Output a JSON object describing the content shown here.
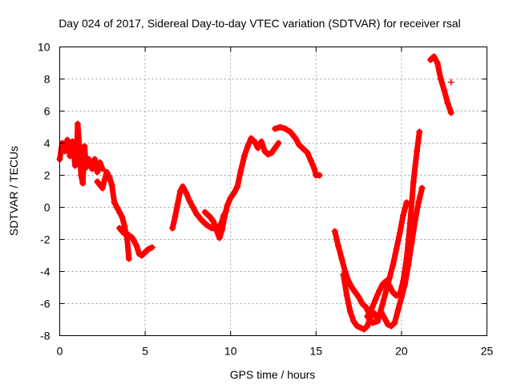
{
  "chart_data": {
    "type": "scatter",
    "title": "Day 024 of 2017, Sidereal Day-to-day VTEC variation (SDTVAR) for receiver rsal",
    "xlabel": "GPS time / hours",
    "ylabel": "SDTVAR / TECUs",
    "xlim": [
      0,
      25
    ],
    "ylim": [
      -8,
      10
    ],
    "xticks": [
      0,
      5,
      10,
      15,
      20,
      25
    ],
    "yticks": [
      -8,
      -6,
      -4,
      -2,
      0,
      2,
      4,
      6,
      8,
      10
    ],
    "grid": true,
    "marker": "plus",
    "color": "#ff0000",
    "series": [
      {
        "values": [
          [
            0.0,
            3.0
          ],
          [
            0.15,
            4.0
          ],
          [
            0.3,
            3.5
          ],
          [
            0.45,
            4.2
          ],
          [
            0.6,
            3.2
          ],
          [
            0.75,
            4.1
          ],
          [
            0.9,
            2.6
          ],
          [
            1.0,
            3.5
          ],
          [
            1.05,
            5.2
          ],
          [
            1.15,
            3.8
          ],
          [
            1.25,
            2.0
          ],
          [
            1.35,
            1.5
          ],
          [
            1.45,
            3.8
          ],
          [
            1.55,
            2.5
          ],
          [
            1.7,
            3.0
          ],
          [
            1.9,
            2.4
          ],
          [
            2.05,
            3.0
          ],
          [
            2.2,
            2.2
          ],
          [
            2.35,
            2.8
          ],
          [
            2.5,
            2.4
          ]
        ]
      },
      {
        "values": [
          [
            2.2,
            1.6
          ],
          [
            2.5,
            1.2
          ],
          [
            2.75,
            2.2
          ],
          [
            2.9,
            1.9
          ],
          [
            3.05,
            1.4
          ],
          [
            3.2,
            0.3
          ],
          [
            3.35,
            0.0
          ],
          [
            3.5,
            -0.3
          ],
          [
            3.65,
            -0.6
          ],
          [
            3.8,
            -1.2
          ],
          [
            3.95,
            -2.0
          ],
          [
            4.05,
            -3.2
          ]
        ]
      },
      {
        "values": [
          [
            3.5,
            -1.3
          ],
          [
            3.75,
            -1.6
          ],
          [
            4.0,
            -1.7
          ],
          [
            4.25,
            -1.9
          ],
          [
            4.5,
            -2.4
          ],
          [
            4.65,
            -2.9
          ],
          [
            4.8,
            -3.0
          ],
          [
            5.0,
            -2.8
          ],
          [
            5.2,
            -2.6
          ],
          [
            5.4,
            -2.5
          ]
        ]
      },
      {
        "values": [
          [
            6.6,
            -1.3
          ],
          [
            6.75,
            -0.6
          ],
          [
            6.9,
            0.2
          ],
          [
            7.05,
            1.0
          ],
          [
            7.2,
            1.3
          ],
          [
            7.4,
            0.9
          ],
          [
            7.6,
            0.4
          ],
          [
            7.8,
            0.0
          ],
          [
            8.0,
            -0.4
          ],
          [
            8.3,
            -0.8
          ],
          [
            8.6,
            -1.1
          ],
          [
            8.9,
            -1.3
          ],
          [
            9.1,
            -1.3
          ],
          [
            9.3,
            -1.2
          ],
          [
            9.45,
            -1.0
          ],
          [
            9.6,
            -0.5
          ],
          [
            9.75,
            -0.2
          ]
        ]
      },
      {
        "values": [
          [
            8.5,
            -0.3
          ],
          [
            8.8,
            -0.6
          ],
          [
            9.0,
            -0.9
          ],
          [
            9.2,
            -1.5
          ],
          [
            9.35,
            -1.9
          ],
          [
            9.5,
            -1.4
          ],
          [
            9.65,
            -0.6
          ],
          [
            9.8,
            0.1
          ],
          [
            10.0,
            0.6
          ],
          [
            10.2,
            0.9
          ],
          [
            10.4,
            1.3
          ],
          [
            10.6,
            2.3
          ],
          [
            10.8,
            3.2
          ],
          [
            11.0,
            3.8
          ],
          [
            11.2,
            4.3
          ],
          [
            11.4,
            4.1
          ],
          [
            11.6,
            3.7
          ],
          [
            11.8,
            4.1
          ],
          [
            12.0,
            3.5
          ],
          [
            12.2,
            3.3
          ],
          [
            12.4,
            3.4
          ],
          [
            12.6,
            3.7
          ],
          [
            12.8,
            4.0
          ]
        ]
      },
      {
        "values": [
          [
            12.6,
            4.9
          ],
          [
            12.9,
            5.0
          ],
          [
            13.2,
            4.9
          ],
          [
            13.5,
            4.7
          ],
          [
            13.8,
            4.3
          ],
          [
            14.0,
            3.9
          ],
          [
            14.3,
            3.6
          ],
          [
            14.5,
            3.4
          ],
          [
            14.7,
            2.9
          ],
          [
            14.9,
            2.4
          ],
          [
            15.0,
            2.0
          ],
          [
            15.2,
            2.0
          ]
        ]
      },
      {
        "values": [
          [
            16.1,
            -1.5
          ],
          [
            16.3,
            -2.4
          ],
          [
            16.5,
            -3.2
          ],
          [
            16.7,
            -4.0
          ],
          [
            16.9,
            -4.6
          ],
          [
            17.1,
            -5.0
          ],
          [
            17.3,
            -5.3
          ],
          [
            17.5,
            -5.6
          ],
          [
            17.7,
            -6.0
          ],
          [
            17.9,
            -6.2
          ],
          [
            18.1,
            -6.6
          ],
          [
            18.3,
            -6.2
          ],
          [
            18.5,
            -5.7
          ],
          [
            18.7,
            -5.2
          ],
          [
            18.9,
            -4.8
          ],
          [
            19.1,
            -4.6
          ],
          [
            19.3,
            -4.9
          ],
          [
            19.5,
            -5.3
          ],
          [
            19.7,
            -5.5
          ],
          [
            19.9,
            -5.4
          ],
          [
            20.1,
            -4.6
          ],
          [
            20.3,
            -3.2
          ],
          [
            20.5,
            -1.0
          ],
          [
            20.7,
            1.6
          ],
          [
            20.9,
            3.5
          ],
          [
            21.05,
            4.7
          ]
        ]
      },
      {
        "values": [
          [
            16.6,
            -4.2
          ],
          [
            16.8,
            -5.5
          ],
          [
            17.0,
            -6.5
          ],
          [
            17.2,
            -7.1
          ],
          [
            17.4,
            -7.4
          ],
          [
            17.6,
            -7.5
          ],
          [
            17.8,
            -7.6
          ],
          [
            18.0,
            -7.4
          ],
          [
            18.2,
            -6.8
          ],
          [
            18.4,
            -6.6
          ],
          [
            18.6,
            -7.0
          ],
          [
            18.8,
            -6.5
          ],
          [
            19.0,
            -6.9
          ],
          [
            19.2,
            -7.3
          ],
          [
            19.4,
            -7.4
          ],
          [
            19.6,
            -7.2
          ],
          [
            19.8,
            -6.4
          ],
          [
            20.0,
            -5.6
          ],
          [
            20.2,
            -4.8
          ],
          [
            20.4,
            -3.6
          ],
          [
            20.6,
            -2.2
          ],
          [
            20.8,
            -0.8
          ],
          [
            21.0,
            0.3
          ],
          [
            21.2,
            1.2
          ]
        ]
      },
      {
        "values": [
          [
            18.0,
            -6.8
          ],
          [
            18.3,
            -7.2
          ],
          [
            18.6,
            -7.1
          ],
          [
            18.9,
            -6.0
          ],
          [
            19.1,
            -5.2
          ],
          [
            19.3,
            -4.4
          ],
          [
            19.5,
            -3.6
          ],
          [
            19.7,
            -2.6
          ],
          [
            19.9,
            -1.6
          ],
          [
            20.1,
            -0.5
          ],
          [
            20.3,
            0.3
          ]
        ]
      },
      {
        "values": [
          [
            21.7,
            9.2
          ],
          [
            21.9,
            9.4
          ],
          [
            22.1,
            9.0
          ],
          [
            22.3,
            8.0
          ],
          [
            22.5,
            7.3
          ],
          [
            22.7,
            6.5
          ],
          [
            22.9,
            5.9
          ]
        ]
      },
      {
        "values": [
          [
            22.9,
            7.8
          ]
        ]
      }
    ]
  }
}
